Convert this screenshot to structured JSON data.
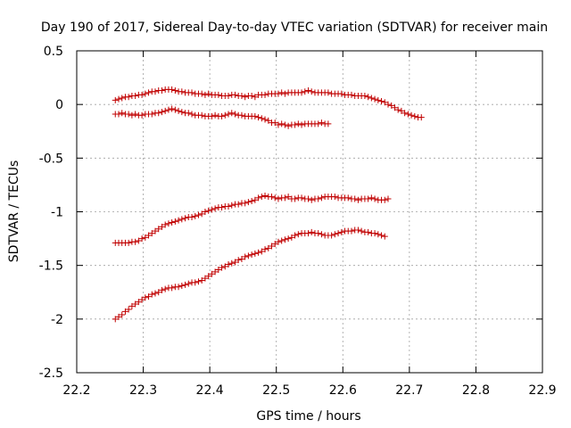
{
  "chart_data": {
    "type": "scatter",
    "title": "Day 190 of 2017, Sidereal Day-to-day VTEC variation (SDTVAR) for receiver main",
    "xlabel": "GPS time / hours",
    "ylabel": "SDTVAR / TECUs",
    "xlim": [
      22.2,
      22.9
    ],
    "ylim": [
      -2.5,
      0.5
    ],
    "x_ticks": [
      22.2,
      22.3,
      22.4,
      22.5,
      22.6,
      22.7,
      22.8,
      22.9
    ],
    "x_tick_labels": [
      "22.2",
      "22.3",
      "22.4",
      "22.5",
      "22.6",
      "22.7",
      "22.8",
      "22.9"
    ],
    "y_ticks": [
      0.5,
      0,
      -0.5,
      -1,
      -1.5,
      -2,
      -2.5
    ],
    "y_tick_labels": [
      "0.5",
      "0",
      "-0.5",
      "-1",
      "-1.5",
      "-2",
      "-2.5"
    ],
    "grid": true,
    "marker": "plus",
    "marker_color": "#c00000",
    "series": [
      {
        "name": "series-1",
        "x_start": 22.258,
        "x_step": 0.005,
        "values": [
          0.04,
          0.05,
          0.06,
          0.07,
          0.07,
          0.08,
          0.08,
          0.09,
          0.09,
          0.1,
          0.11,
          0.12,
          0.12,
          0.13,
          0.13,
          0.14,
          0.14,
          0.14,
          0.13,
          0.12,
          0.12,
          0.11,
          0.11,
          0.11,
          0.1,
          0.1,
          0.1,
          0.09,
          0.1,
          0.09,
          0.09,
          0.09,
          0.08,
          0.08,
          0.08,
          0.09,
          0.09,
          0.08,
          0.08,
          0.07,
          0.08,
          0.08,
          0.07,
          0.09,
          0.09,
          0.09,
          0.1,
          0.1,
          0.1,
          0.1,
          0.11,
          0.1,
          0.11,
          0.11,
          0.11,
          0.11,
          0.11,
          0.12,
          0.13,
          0.12,
          0.11,
          0.11,
          0.11,
          0.11,
          0.11,
          0.1,
          0.1,
          0.1,
          0.1,
          0.09,
          0.09,
          0.09,
          0.08,
          0.08,
          0.08,
          0.08,
          0.07,
          0.06,
          0.05,
          0.04,
          0.03,
          0.02,
          0.0,
          -0.01,
          -0.03,
          -0.05,
          -0.06,
          -0.08,
          -0.09,
          -0.1,
          -0.11,
          -0.12,
          -0.12
        ]
      },
      {
        "name": "series-2",
        "x_start": 22.258,
        "x_step": 0.005,
        "values": [
          -0.09,
          -0.09,
          -0.08,
          -0.09,
          -0.09,
          -0.1,
          -0.09,
          -0.1,
          -0.1,
          -0.09,
          -0.09,
          -0.09,
          -0.08,
          -0.08,
          -0.07,
          -0.06,
          -0.05,
          -0.04,
          -0.05,
          -0.06,
          -0.07,
          -0.08,
          -0.08,
          -0.09,
          -0.1,
          -0.1,
          -0.1,
          -0.11,
          -0.11,
          -0.11,
          -0.1,
          -0.11,
          -0.11,
          -0.1,
          -0.09,
          -0.08,
          -0.09,
          -0.1,
          -0.1,
          -0.11,
          -0.11,
          -0.11,
          -0.11,
          -0.12,
          -0.13,
          -0.14,
          -0.15,
          -0.17,
          -0.17,
          -0.19,
          -0.18,
          -0.19,
          -0.2,
          -0.19,
          -0.19,
          -0.18,
          -0.19,
          -0.18,
          -0.18,
          -0.18,
          -0.18,
          -0.18,
          -0.17,
          -0.18,
          -0.18
        ]
      },
      {
        "name": "series-3",
        "x_start": 22.258,
        "x_step": 0.005,
        "values": [
          -1.29,
          -1.29,
          -1.29,
          -1.29,
          -1.29,
          -1.28,
          -1.28,
          -1.27,
          -1.25,
          -1.24,
          -1.22,
          -1.2,
          -1.18,
          -1.16,
          -1.14,
          -1.12,
          -1.11,
          -1.1,
          -1.09,
          -1.08,
          -1.07,
          -1.06,
          -1.05,
          -1.05,
          -1.04,
          -1.03,
          -1.02,
          -1.0,
          -0.99,
          -0.98,
          -0.97,
          -0.96,
          -0.96,
          -0.95,
          -0.95,
          -0.94,
          -0.93,
          -0.93,
          -0.92,
          -0.92,
          -0.91,
          -0.9,
          -0.89,
          -0.87,
          -0.86,
          -0.85,
          -0.86,
          -0.86,
          -0.87,
          -0.88,
          -0.87,
          -0.87,
          -0.86,
          -0.88,
          -0.88,
          -0.87,
          -0.87,
          -0.88,
          -0.88,
          -0.89,
          -0.88,
          -0.88,
          -0.87,
          -0.86,
          -0.86,
          -0.86,
          -0.86,
          -0.87,
          -0.87,
          -0.87,
          -0.87,
          -0.88,
          -0.88,
          -0.89,
          -0.88,
          -0.88,
          -0.88,
          -0.87,
          -0.88,
          -0.89,
          -0.89,
          -0.89,
          -0.88
        ]
      },
      {
        "name": "series-4",
        "x_start": 22.258,
        "x_step": 0.005,
        "values": [
          -2.0,
          -1.98,
          -1.96,
          -1.93,
          -1.91,
          -1.88,
          -1.86,
          -1.84,
          -1.82,
          -1.8,
          -1.79,
          -1.77,
          -1.76,
          -1.75,
          -1.73,
          -1.72,
          -1.71,
          -1.71,
          -1.7,
          -1.7,
          -1.69,
          -1.68,
          -1.67,
          -1.66,
          -1.66,
          -1.65,
          -1.64,
          -1.62,
          -1.6,
          -1.58,
          -1.56,
          -1.54,
          -1.52,
          -1.51,
          -1.49,
          -1.48,
          -1.47,
          -1.45,
          -1.44,
          -1.42,
          -1.41,
          -1.4,
          -1.39,
          -1.38,
          -1.37,
          -1.35,
          -1.34,
          -1.32,
          -1.3,
          -1.28,
          -1.27,
          -1.26,
          -1.25,
          -1.24,
          -1.22,
          -1.21,
          -1.2,
          -1.2,
          -1.2,
          -1.19,
          -1.2,
          -1.2,
          -1.21,
          -1.22,
          -1.22,
          -1.22,
          -1.21,
          -1.2,
          -1.19,
          -1.18,
          -1.18,
          -1.18,
          -1.17,
          -1.17,
          -1.18,
          -1.19,
          -1.19,
          -1.2,
          -1.2,
          -1.21,
          -1.22,
          -1.23
        ]
      }
    ]
  }
}
